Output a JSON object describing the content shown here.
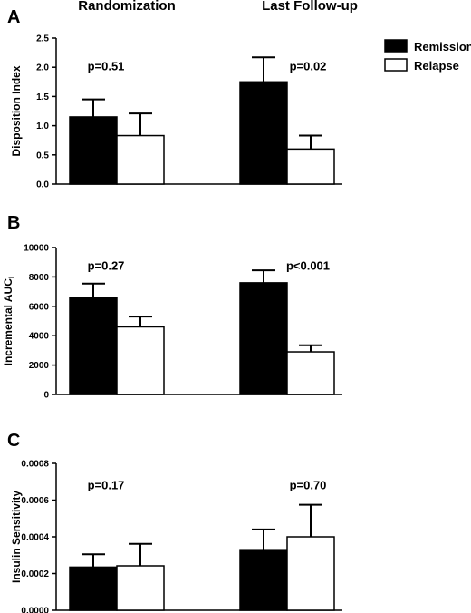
{
  "column_headers": [
    "Randomization",
    "Last Follow-up"
  ],
  "legend": [
    {
      "label": "Remission",
      "fill": "#000000"
    },
    {
      "label": "Relapse",
      "fill": "#ffffff"
    }
  ],
  "chart_data": [
    {
      "type": "bar",
      "panel": "A",
      "ylabel": "Disposition Index",
      "ylim": [
        0,
        2.5
      ],
      "yticks": [
        "0.0",
        "0.5",
        "1.0",
        "1.5",
        "2.0",
        "2.5"
      ],
      "categories": [
        "Randomization",
        "Last Follow-up"
      ],
      "series": [
        {
          "name": "Remission",
          "values": [
            1.15,
            1.75
          ],
          "error": [
            0.3,
            0.42
          ]
        },
        {
          "name": "Relapse",
          "values": [
            0.83,
            0.6
          ],
          "error": [
            0.38,
            0.23
          ]
        }
      ],
      "annotations": [
        "p=0.51",
        "p=0.02"
      ],
      "annotation_y": [
        1.95,
        1.95
      ]
    },
    {
      "type": "bar",
      "panel": "B",
      "ylabel": "Incremental AUC",
      "ylabel_sub": "I",
      "ylim": [
        0,
        10000
      ],
      "yticks": [
        "0",
        "2000",
        "4000",
        "6000",
        "8000",
        "10000"
      ],
      "categories": [
        "Randomization",
        "Last Follow-up"
      ],
      "series": [
        {
          "name": "Remission",
          "values": [
            6600,
            7600
          ],
          "error": [
            950,
            850
          ]
        },
        {
          "name": "Relapse",
          "values": [
            4600,
            2900
          ],
          "error": [
            700,
            450
          ]
        }
      ],
      "annotations": [
        "p=0.27",
        "p<0.001"
      ],
      "annotation_y": [
        8500,
        8500
      ]
    },
    {
      "type": "bar",
      "panel": "C",
      "ylabel": "Insulin Sensitivity",
      "ylim": [
        0,
        0.0008
      ],
      "yticks": [
        "0.0000",
        "0.0002",
        "0.0004",
        "0.0006",
        "0.0008"
      ],
      "categories": [
        "Randomization",
        "Last Follow-up"
      ],
      "series": [
        {
          "name": "Remission",
          "values": [
            0.000235,
            0.00033
          ],
          "error": [
            7e-05,
            0.00011
          ]
        },
        {
          "name": "Relapse",
          "values": [
            0.000242,
            0.0004
          ],
          "error": [
            0.00012,
            0.000175
          ]
        }
      ],
      "annotations": [
        "p=0.17",
        "p=0.70"
      ],
      "annotation_y": [
        0.00066,
        0.00066
      ]
    }
  ]
}
